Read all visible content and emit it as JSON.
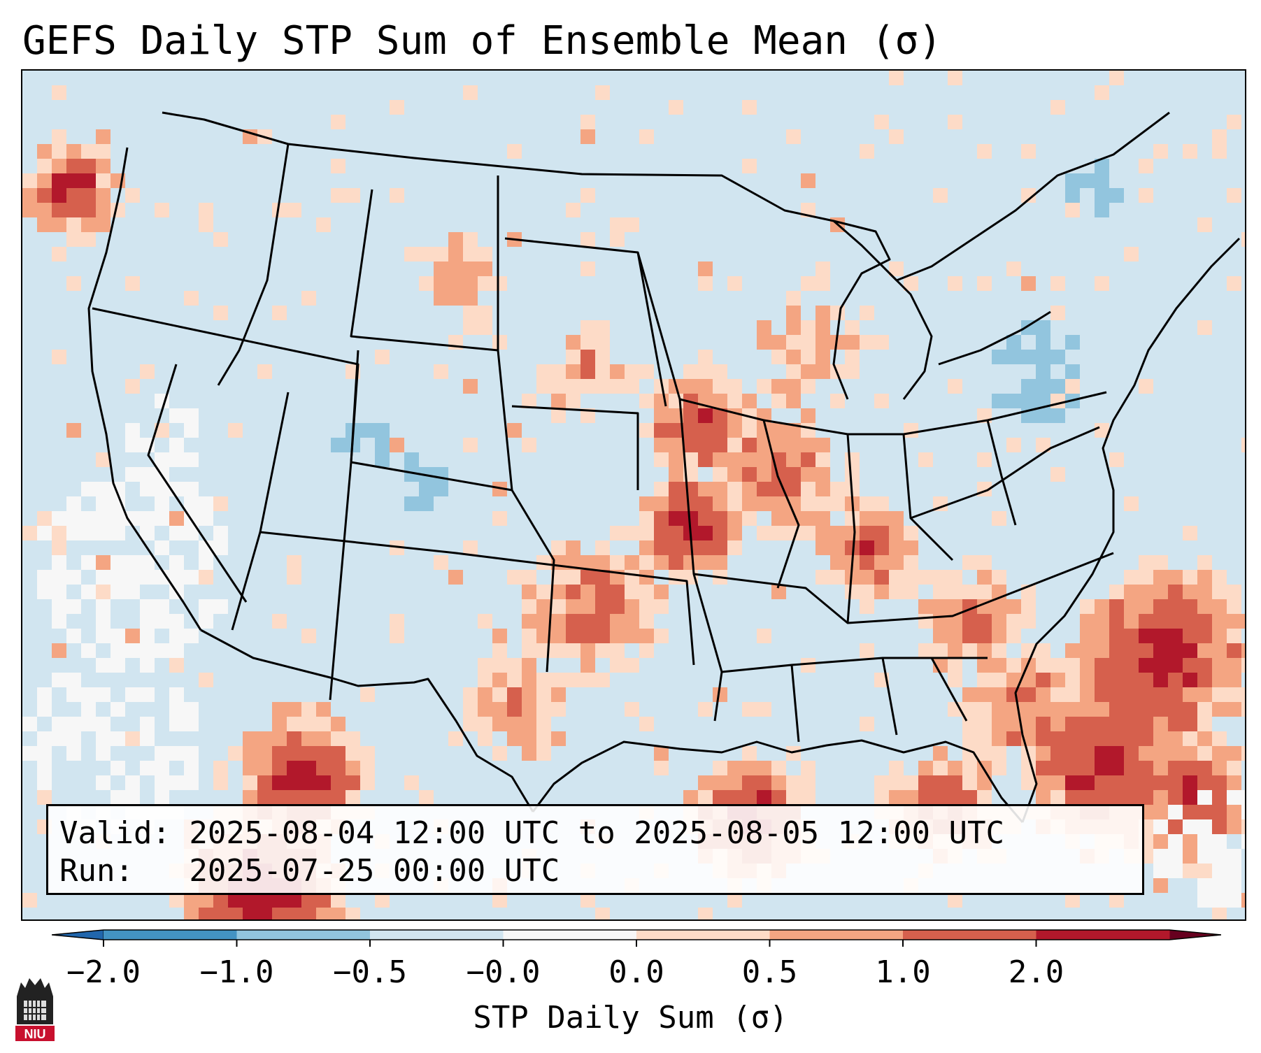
{
  "title": "GEFS Daily STP Sum of Ensemble Mean (σ)",
  "valid_line": "Valid: 2025-08-04 12:00 UTC to 2025-08-05 12:00 UTC",
  "run_line": "Run:   2025-07-25 00:00 UTC",
  "colorbar": {
    "label": "STP Daily Sum (σ)",
    "ticks": [
      "−2.0",
      "−1.0",
      "−0.5",
      "−0.0",
      "0.0",
      "0.5",
      "1.0",
      "2.0"
    ],
    "bin_colors": [
      "#4393c3",
      "#92c5de",
      "#d1e5f0",
      "#f7f7f7",
      "#fddbc7",
      "#f4a582",
      "#d6604d",
      "#b2182b"
    ],
    "extend": "both"
  },
  "logo": {
    "text": "NIU",
    "color": "#c8102e"
  },
  "colors": {
    "ocean_land_background": "#d1e5f0",
    "strong_positive": "#b2182b",
    "positive": "#d6604d",
    "weak_positive": "#f4a582",
    "slight_positive": "#fddbc7",
    "near_zero": "#f7f7f7",
    "slight_negative": "#92c5de"
  }
}
